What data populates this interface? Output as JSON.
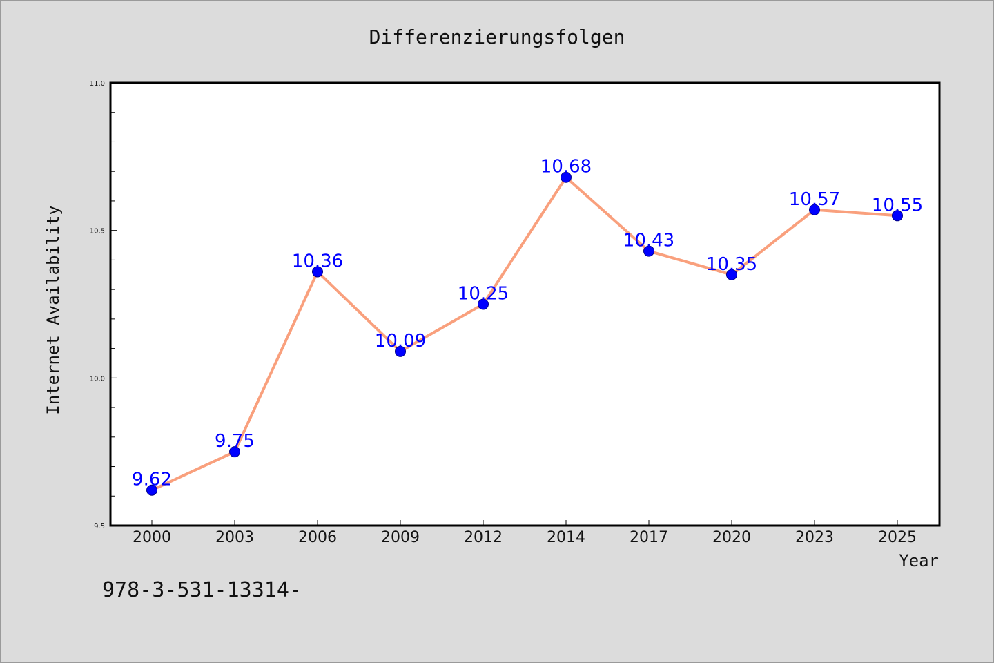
{
  "chart_data": {
    "type": "line",
    "title": "Differenzierungsfolgen",
    "xlabel": "Year",
    "ylabel": "Internet Availability",
    "categories": [
      "2000",
      "2003",
      "2006",
      "2009",
      "2012",
      "2014",
      "2017",
      "2020",
      "2023",
      "2025"
    ],
    "series": [
      {
        "values": [
          9.62,
          9.75,
          10.36,
          10.09,
          10.25,
          10.68,
          10.43,
          10.35,
          10.57,
          10.55
        ],
        "data_labels": [
          "9.62",
          "9.75",
          "10.36",
          "10.09",
          "10.25",
          "10.68",
          "10.43",
          "10.35",
          "10.57",
          "10.55"
        ],
        "line_color": "#f9a07d",
        "marker_color": "#0000ff"
      }
    ],
    "ylim": [
      9.5,
      11.0
    ],
    "y_major_ticks": [
      "9.5",
      "10.0",
      "10.5",
      "11.0"
    ],
    "y_minor_step": 0.1,
    "grid": false,
    "plot_background": "#ffffff",
    "figure_background": "#dcdcdc"
  },
  "footnote": "978-3-531-13314-"
}
